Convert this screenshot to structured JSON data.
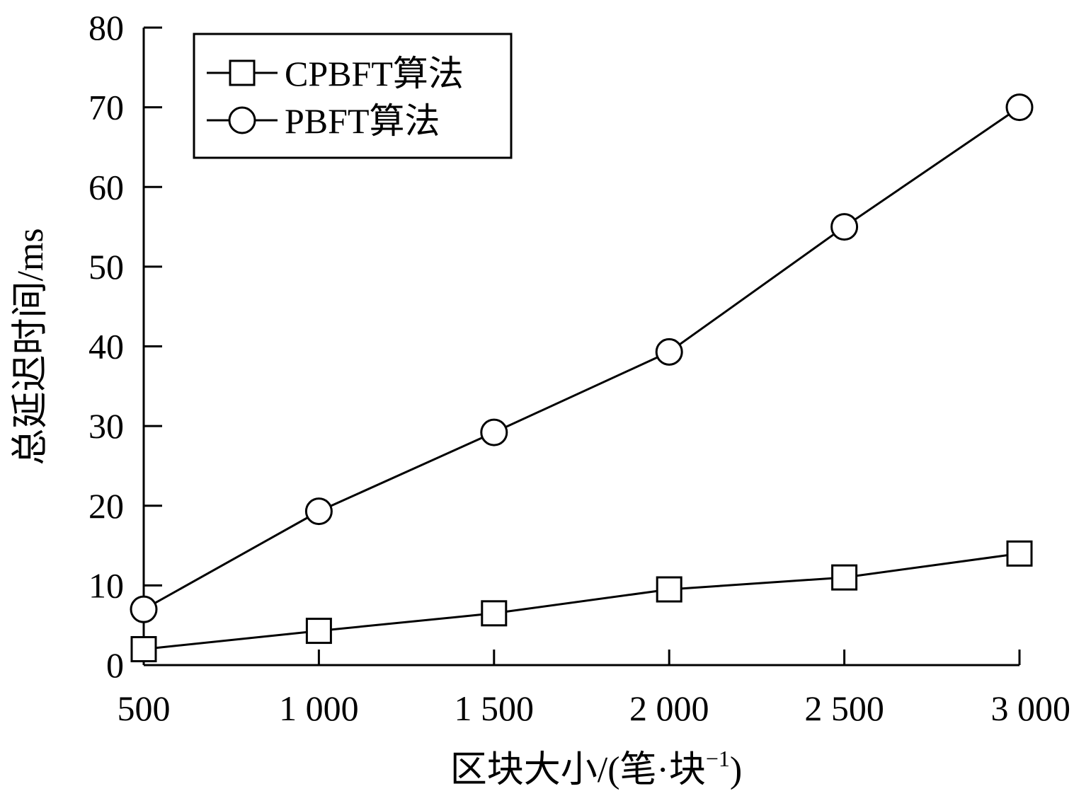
{
  "chart_data": {
    "type": "line",
    "title": "",
    "xlabel": "区块大小/(笔·块",
    "xlabel_sup": "−1",
    "xlabel_end": ")",
    "ylabel": "总延迟时间/ms",
    "x": [
      500,
      1000,
      1500,
      2000,
      2500,
      3000
    ],
    "x_tick_labels": [
      "500",
      "1 000",
      "1 500",
      "2 000",
      "2 500",
      "3 000"
    ],
    "y_ticks": [
      0,
      10,
      20,
      30,
      40,
      50,
      60,
      70,
      80
    ],
    "y_tick_labels": [
      "0",
      "10",
      "20",
      "30",
      "40",
      "50",
      "60",
      "70",
      "80"
    ],
    "xlim": [
      500,
      3000
    ],
    "ylim": [
      0,
      80
    ],
    "grid": false,
    "legend_position": "top-left",
    "series": [
      {
        "name": "CPBFT算法",
        "marker": "square",
        "values": [
          2.0,
          4.3,
          6.5,
          9.5,
          11.0,
          14.0
        ]
      },
      {
        "name": "PBFT算法",
        "marker": "circle",
        "values": [
          7.0,
          19.3,
          29.2,
          39.3,
          55.0,
          70.0
        ]
      }
    ],
    "colors": {
      "line": "#000000",
      "background": "#ffffff"
    }
  }
}
